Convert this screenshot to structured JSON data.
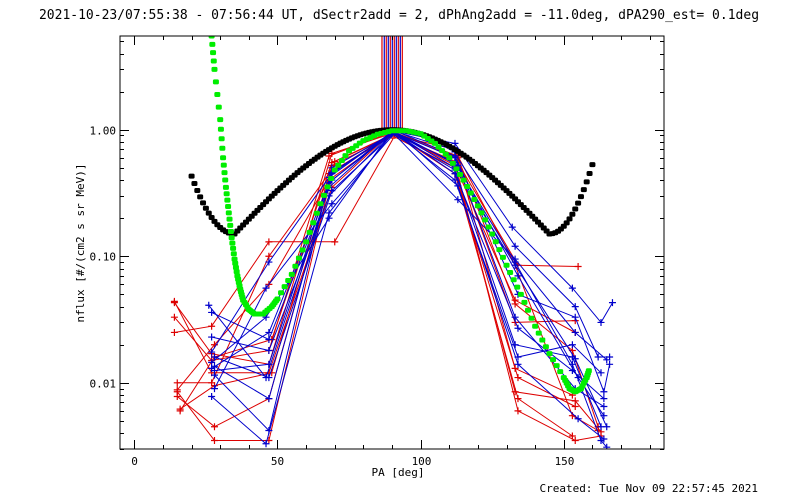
{
  "title": "2021-10-23/07:55:38 - 07:56:44 UT, dSectr2add = 2, dPhAng2add = -11.0deg, dPA290_est=  0.1deg",
  "footer": "Created: Tue Nov 09 22:57:45 2021",
  "chart_data": {
    "type": "line",
    "xlabel": "PA [deg]",
    "ylabel": "nflux [#/(cm2 s sr MeV)]",
    "xlim": [
      -5,
      185
    ],
    "ylim": [
      0.003,
      5.5
    ],
    "yscale": "log",
    "xticks": [
      0,
      50,
      100,
      150
    ],
    "xtick_labels": [
      "0",
      "50",
      "100",
      "150"
    ],
    "yticks": [
      0.01,
      0.1,
      1.0
    ],
    "ytick_labels": [
      "0.01",
      "0.10",
      "1.00"
    ],
    "colors": {
      "red": "#dd0000",
      "blue": "#0000cc",
      "black": "#000000",
      "green": "#00ee00"
    },
    "vertical_markers": {
      "x": [
        86.5,
        87.3,
        88.0,
        88.7,
        89.4,
        90.1,
        90.8,
        91.5,
        92.2,
        92.9,
        93.6
      ],
      "colors": [
        "#dd0000",
        "#0000cc",
        "#dd0000",
        "#0000cc",
        "#dd0000",
        "#0000cc",
        "#dd0000",
        "#0000cc",
        "#dd0000",
        "#0000cc",
        "#dd0000"
      ],
      "y_from": 0.95
    },
    "model_curves": [
      {
        "color": "#000000",
        "style": "dots",
        "x_range": [
          20,
          160
        ],
        "min_value": 0.15,
        "min_positions": [
          35,
          145
        ],
        "peak": [
          90,
          1.0
        ],
        "end_values": [
          0.43,
          0.53
        ]
      },
      {
        "color": "#00ee00",
        "style": "dashes",
        "points": [
          [
            27,
            5.5
          ],
          [
            28,
            3.0
          ],
          [
            30,
            1.2
          ],
          [
            31,
            0.6
          ],
          [
            32,
            0.35
          ],
          [
            33,
            0.22
          ],
          [
            34,
            0.14
          ],
          [
            35,
            0.095
          ],
          [
            36,
            0.07
          ],
          [
            37,
            0.055
          ],
          [
            38,
            0.045
          ],
          [
            40,
            0.038
          ],
          [
            42,
            0.035
          ],
          [
            45,
            0.035
          ],
          [
            48,
            0.04
          ],
          [
            50,
            0.046
          ],
          [
            55,
            0.072
          ],
          [
            60,
            0.13
          ],
          [
            65,
            0.26
          ],
          [
            70,
            0.48
          ],
          [
            75,
            0.68
          ],
          [
            80,
            0.82
          ],
          [
            85,
            0.92
          ],
          [
            90,
            0.98
          ],
          [
            95,
            0.98
          ],
          [
            100,
            0.93
          ],
          [
            105,
            0.78
          ],
          [
            110,
            0.6
          ],
          [
            115,
            0.4
          ],
          [
            120,
            0.25
          ],
          [
            125,
            0.15
          ],
          [
            130,
            0.085
          ],
          [
            135,
            0.05
          ],
          [
            140,
            0.028
          ],
          [
            145,
            0.017
          ],
          [
            150,
            0.011
          ],
          [
            152,
            0.009
          ],
          [
            154,
            0.0085
          ],
          [
            156,
            0.009
          ],
          [
            158,
            0.011
          ],
          [
            159,
            0.013
          ]
        ]
      }
    ],
    "series": [
      {
        "color": "#dd0000",
        "x": [
          14,
          27,
          47,
          69,
          91,
          113,
          133,
          153,
          162
        ],
        "values": [
          0.043,
          0.017,
          0.014,
          0.65,
          0.95,
          0.62,
          0.085,
          0.0055,
          0.0042
        ]
      },
      {
        "color": "#dd0000",
        "x": [
          15,
          28,
          47,
          70,
          91,
          112,
          134,
          154,
          163
        ],
        "values": [
          0.0085,
          0.0035,
          0.0035,
          0.56,
          0.93,
          0.55,
          0.006,
          0.0035,
          0.0038
        ]
      },
      {
        "color": "#dd0000",
        "x": [
          16,
          28,
          48,
          69,
          90,
          112,
          133,
          154,
          163
        ],
        "values": [
          0.0062,
          0.0095,
          0.012,
          0.52,
          0.9,
          0.5,
          0.0085,
          0.0072,
          0.0041
        ]
      },
      {
        "color": "#dd0000",
        "x": [
          14,
          27,
          47,
          68,
          90,
          113,
          133,
          153,
          162
        ],
        "values": [
          0.033,
          0.015,
          0.018,
          0.62,
          0.96,
          0.6,
          0.042,
          0.018,
          0.0045
        ]
      },
      {
        "color": "#dd0000",
        "x": [
          15,
          28,
          47,
          69,
          91,
          112,
          134,
          154
        ],
        "values": [
          0.0078,
          0.0045,
          0.0075,
          0.47,
          0.92,
          0.45,
          0.011,
          0.0065
        ]
      },
      {
        "color": "#dd0000",
        "x": [
          14,
          27,
          47,
          70,
          91,
          112,
          133,
          153
        ],
        "values": [
          0.025,
          0.028,
          0.13,
          0.13,
          0.9,
          0.7,
          0.013,
          0.008
        ]
      },
      {
        "color": "#dd0000",
        "x": [
          15,
          27,
          47,
          68,
          90,
          113,
          134,
          155
        ],
        "values": [
          0.01,
          0.01,
          0.1,
          0.45,
          0.93,
          0.55,
          0.085,
          0.083
        ]
      },
      {
        "color": "#dd0000",
        "x": [
          16,
          28,
          48,
          69,
          91,
          112,
          133,
          154
        ],
        "values": [
          0.006,
          0.016,
          0.022,
          0.55,
          0.94,
          0.52,
          0.045,
          0.025
        ]
      },
      {
        "color": "#dd0000",
        "x": [
          14,
          27,
          47,
          69,
          90,
          112,
          134,
          153
        ],
        "values": [
          0.044,
          0.012,
          0.012,
          0.35,
          0.96,
          0.45,
          0.0075,
          0.0038
        ]
      },
      {
        "color": "#dd0000",
        "x": [
          15,
          28,
          47,
          68,
          91,
          113,
          133,
          154
        ],
        "values": [
          0.0088,
          0.02,
          0.06,
          0.4,
          0.95,
          0.52,
          0.03,
          0.031
        ]
      },
      {
        "color": "#0000cc",
        "x": [
          26,
          46,
          68,
          90,
          112,
          132,
          153,
          163,
          167
        ],
        "values": [
          0.041,
          0.011,
          0.35,
          0.98,
          0.78,
          0.17,
          0.056,
          0.03,
          0.043
        ]
      },
      {
        "color": "#0000cc",
        "x": [
          27,
          47,
          69,
          91,
          111,
          133,
          154,
          162,
          166
        ],
        "values": [
          0.036,
          0.022,
          0.4,
          0.97,
          0.7,
          0.12,
          0.04,
          0.016,
          0.016
        ]
      },
      {
        "color": "#0000cc",
        "x": [
          27,
          47,
          68,
          90,
          112,
          133,
          153,
          163,
          165
        ],
        "values": [
          0.023,
          0.018,
          0.3,
          0.95,
          0.55,
          0.09,
          0.014,
          0.0035,
          0.0031
        ]
      },
      {
        "color": "#0000cc",
        "x": [
          28,
          47,
          69,
          91,
          112,
          134,
          154,
          164,
          166
        ],
        "values": [
          0.0135,
          0.0075,
          0.45,
          0.98,
          0.62,
          0.05,
          0.033,
          0.0085,
          0.014
        ]
      },
      {
        "color": "#0000cc",
        "x": [
          27,
          46,
          68,
          90,
          112,
          133,
          153,
          163
        ],
        "values": [
          0.0078,
          0.0033,
          0.22,
          0.93,
          0.48,
          0.02,
          0.016,
          0.0045
        ]
      },
      {
        "color": "#0000cc",
        "x": [
          28,
          47,
          69,
          91,
          113,
          134,
          155,
          164
        ],
        "values": [
          0.0115,
          0.0042,
          0.5,
          0.96,
          0.52,
          0.07,
          0.011,
          0.0055
        ]
      },
      {
        "color": "#0000cc",
        "x": [
          27,
          47,
          68,
          90,
          112,
          133,
          154,
          164
        ],
        "values": [
          0.013,
          0.025,
          0.38,
          0.97,
          0.6,
          0.033,
          0.009,
          0.0065
        ]
      },
      {
        "color": "#0000cc",
        "x": [
          28,
          46,
          69,
          91,
          112,
          134,
          153,
          163
        ],
        "values": [
          0.009,
          0.056,
          0.26,
          0.94,
          0.4,
          0.016,
          0.02,
          0.012
        ]
      },
      {
        "color": "#0000cc",
        "x": [
          27,
          47,
          68,
          90,
          113,
          133,
          154,
          165
        ],
        "values": [
          0.0175,
          0.09,
          0.42,
          0.96,
          0.28,
          0.095,
          0.025,
          0.0152
        ]
      },
      {
        "color": "#0000cc",
        "x": [
          28,
          47,
          69,
          91,
          112,
          134,
          153,
          164
        ],
        "values": [
          0.016,
          0.011,
          0.33,
          0.95,
          0.45,
          0.027,
          0.0125,
          0.0075
        ]
      },
      {
        "color": "#0000cc",
        "x": [
          27,
          46,
          68,
          90,
          112,
          133,
          154,
          165
        ],
        "values": [
          0.0145,
          0.033,
          0.2,
          0.98,
          0.5,
          0.085,
          0.0155,
          0.0045
        ]
      },
      {
        "color": "#0000cc",
        "x": [
          28,
          47,
          69,
          91,
          113,
          134,
          155,
          164
        ],
        "values": [
          0.0125,
          0.014,
          0.46,
          0.97,
          0.36,
          0.014,
          0.0052,
          0.0036
        ]
      }
    ]
  }
}
